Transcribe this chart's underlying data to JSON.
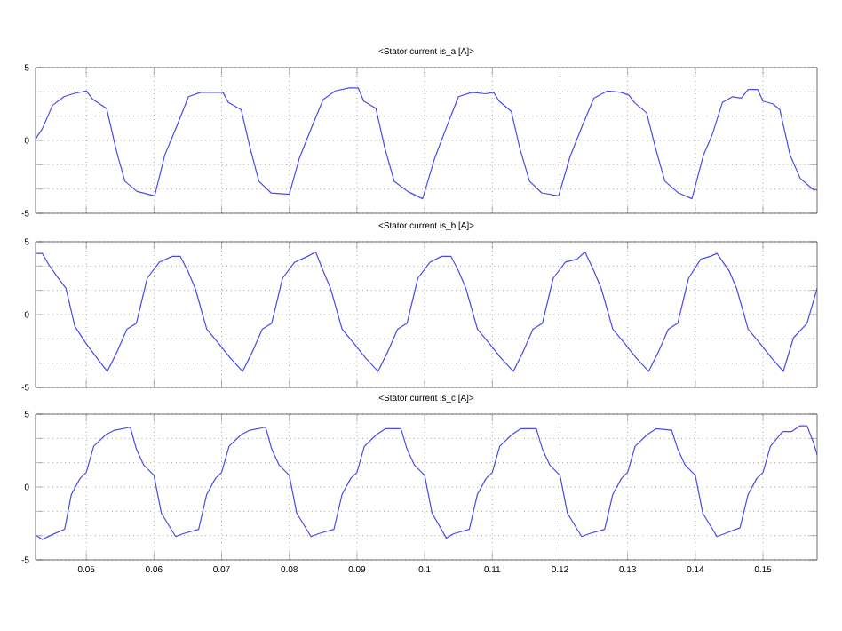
{
  "chart_data": [
    {
      "type": "line",
      "title": "<Stator current is_a [A]>",
      "color": "#4a4ae6",
      "grid": true,
      "tick_labels": "y",
      "xlim": [
        0.0425,
        0.158
      ],
      "ylim": [
        -5,
        5
      ],
      "xticks": [
        0.05,
        0.06,
        0.07,
        0.08,
        0.09,
        0.1,
        0.11,
        0.12,
        0.13,
        0.14,
        0.15
      ],
      "yticks": [
        -5,
        {
          "value": -3.333,
          "label": null
        },
        {
          "value": -1.667,
          "label": null
        },
        0,
        {
          "value": 1.667,
          "label": null
        },
        {
          "value": 3.333,
          "label": null
        },
        5
      ],
      "x": [
        0.0425,
        0.0435,
        0.045,
        0.0467,
        0.048,
        0.05,
        0.051,
        0.053,
        0.0545,
        0.0557,
        0.0575,
        0.0601,
        0.0616,
        0.0634,
        0.0651,
        0.0669,
        0.0702,
        0.071,
        0.0729,
        0.0742,
        0.0755,
        0.0773,
        0.08,
        0.0815,
        0.0833,
        0.085,
        0.0868,
        0.0888,
        0.0902,
        0.091,
        0.0928,
        0.0941,
        0.0955,
        0.0975,
        0.0997,
        0.1015,
        0.1033,
        0.105,
        0.107,
        0.109,
        0.1102,
        0.111,
        0.1128,
        0.1141,
        0.1155,
        0.1173,
        0.1198,
        0.1215,
        0.1233,
        0.125,
        0.127,
        0.129,
        0.1302,
        0.131,
        0.1328,
        0.1341,
        0.1355,
        0.1375,
        0.1395,
        0.1412,
        0.1425,
        0.144,
        0.1455,
        0.1468,
        0.1478,
        0.1492,
        0.15,
        0.1515,
        0.1525,
        0.154,
        0.1555,
        0.1575,
        0.158
      ],
      "values": [
        0.1,
        0.8,
        2.4,
        3.0,
        3.2,
        3.4,
        2.8,
        2.2,
        -0.8,
        -2.8,
        -3.5,
        -3.8,
        -1.0,
        1.0,
        3.0,
        3.3,
        3.3,
        2.6,
        2.1,
        -0.5,
        -2.8,
        -3.6,
        -3.7,
        -1.2,
        0.9,
        2.8,
        3.4,
        3.6,
        3.6,
        2.7,
        2.2,
        -0.5,
        -2.8,
        -3.5,
        -4.0,
        -1.2,
        1.0,
        3.0,
        3.3,
        3.2,
        3.3,
        2.7,
        2.0,
        -0.6,
        -2.8,
        -3.6,
        -3.8,
        -1.1,
        1.0,
        2.9,
        3.4,
        3.3,
        3.1,
        2.6,
        1.9,
        -0.5,
        -2.8,
        -3.6,
        -4.0,
        -1.0,
        0.4,
        2.6,
        3.0,
        2.9,
        3.5,
        3.5,
        2.7,
        2.5,
        2.1,
        -1.0,
        -2.6,
        -3.4,
        -3.4
      ]
    },
    {
      "type": "line",
      "title": "<Stator current is_b [A]>",
      "color": "#4a4ae6",
      "grid": true,
      "tick_labels": "y",
      "xlim": [
        0.0425,
        0.158
      ],
      "ylim": [
        -5,
        5
      ],
      "xticks": [
        0.05,
        0.06,
        0.07,
        0.08,
        0.09,
        0.1,
        0.11,
        0.12,
        0.13,
        0.14,
        0.15
      ],
      "yticks": [
        -5,
        {
          "value": -3.333,
          "label": null
        },
        {
          "value": -1.667,
          "label": null
        },
        0,
        {
          "value": 1.667,
          "label": null
        },
        {
          "value": 3.333,
          "label": null
        },
        5
      ],
      "x": [
        0.0425,
        0.0435,
        0.0445,
        0.0457,
        0.047,
        0.0483,
        0.05,
        0.0516,
        0.0531,
        0.0545,
        0.056,
        0.0574,
        0.059,
        0.0608,
        0.0627,
        0.0639,
        0.065,
        0.0661,
        0.0678,
        0.0696,
        0.0713,
        0.0731,
        0.0745,
        0.076,
        0.0774,
        0.079,
        0.0808,
        0.0827,
        0.0839,
        0.085,
        0.0861,
        0.0878,
        0.0896,
        0.0913,
        0.0931,
        0.0945,
        0.096,
        0.0974,
        0.099,
        0.1008,
        0.1025,
        0.1039,
        0.105,
        0.1061,
        0.1078,
        0.1096,
        0.1113,
        0.1131,
        0.1145,
        0.116,
        0.1174,
        0.119,
        0.1208,
        0.1225,
        0.1237,
        0.125,
        0.1261,
        0.1278,
        0.1296,
        0.1313,
        0.1331,
        0.1345,
        0.136,
        0.1374,
        0.139,
        0.1408,
        0.1422,
        0.1432,
        0.145,
        0.1461,
        0.1478,
        0.1496,
        0.1513,
        0.153,
        0.1545,
        0.1565,
        0.158
      ],
      "values": [
        4.2,
        4.2,
        3.4,
        2.6,
        1.8,
        -0.8,
        -2.0,
        -3.0,
        -3.9,
        -2.6,
        -1.0,
        -0.6,
        2.5,
        3.6,
        4.0,
        4.0,
        3.0,
        1.8,
        -1.0,
        -2.0,
        -3.0,
        -3.9,
        -2.6,
        -1.0,
        -0.6,
        2.5,
        3.6,
        4.0,
        4.3,
        3.0,
        1.8,
        -1.0,
        -2.0,
        -3.0,
        -3.9,
        -2.6,
        -1.0,
        -0.6,
        2.5,
        3.6,
        4.0,
        4.0,
        3.0,
        1.8,
        -1.0,
        -2.0,
        -3.0,
        -3.9,
        -2.6,
        -1.0,
        -0.6,
        2.5,
        3.6,
        3.8,
        4.3,
        3.0,
        1.8,
        -1.0,
        -2.0,
        -3.0,
        -3.9,
        -2.6,
        -1.0,
        -0.6,
        2.5,
        3.8,
        4.0,
        4.2,
        3.0,
        1.8,
        -1.0,
        -2.0,
        -3.0,
        -3.9,
        -1.6,
        -0.6,
        1.8
      ]
    },
    {
      "type": "line",
      "title": "<Stator current is_c [A]>",
      "color": "#4a4ae6",
      "grid": true,
      "xlim": [
        0.0425,
        0.158
      ],
      "ylim": [
        -5,
        5
      ],
      "xticks": [
        0.05,
        0.06,
        0.07,
        0.08,
        0.09,
        0.1,
        0.11,
        0.12,
        0.13,
        0.14,
        0.15
      ],
      "yticks": [
        -5,
        {
          "value": -3.333,
          "label": null
        },
        {
          "value": -1.667,
          "label": null
        },
        0,
        {
          "value": 1.667,
          "label": null
        },
        {
          "value": 3.333,
          "label": null
        },
        5
      ],
      "x": [
        0.0425,
        0.0435,
        0.0448,
        0.0468,
        0.0478,
        0.0491,
        0.05,
        0.0511,
        0.0529,
        0.0542,
        0.0565,
        0.0574,
        0.0585,
        0.06,
        0.0611,
        0.0632,
        0.0643,
        0.0666,
        0.0678,
        0.0691,
        0.07,
        0.0711,
        0.0729,
        0.0742,
        0.0765,
        0.0774,
        0.0785,
        0.08,
        0.0811,
        0.0832,
        0.0843,
        0.0866,
        0.0878,
        0.0891,
        0.09,
        0.0911,
        0.0929,
        0.0942,
        0.0965,
        0.0974,
        0.0985,
        0.1,
        0.1011,
        0.1032,
        0.1043,
        0.1066,
        0.1078,
        0.1091,
        0.11,
        0.1111,
        0.1129,
        0.1142,
        0.1165,
        0.1174,
        0.1185,
        0.12,
        0.1211,
        0.1232,
        0.1243,
        0.1266,
        0.1278,
        0.1291,
        0.13,
        0.1311,
        0.1329,
        0.1342,
        0.1365,
        0.1374,
        0.1385,
        0.14,
        0.1411,
        0.1432,
        0.1443,
        0.1466,
        0.1478,
        0.1491,
        0.15,
        0.1511,
        0.1529,
        0.1542,
        0.1555,
        0.1565,
        0.1575,
        0.158
      ],
      "values": [
        -3.3,
        -3.6,
        -3.3,
        -2.9,
        -0.5,
        0.6,
        1.0,
        2.8,
        3.6,
        3.9,
        4.1,
        2.6,
        1.5,
        0.8,
        -1.8,
        -3.4,
        -3.2,
        -2.9,
        -0.5,
        0.6,
        1.0,
        2.8,
        3.6,
        3.9,
        4.1,
        2.6,
        1.5,
        0.8,
        -1.8,
        -3.4,
        -3.2,
        -2.9,
        -0.5,
        0.6,
        1.0,
        2.8,
        3.6,
        4.0,
        4.0,
        2.6,
        1.5,
        0.8,
        -1.8,
        -3.5,
        -3.2,
        -2.9,
        -0.5,
        0.6,
        1.0,
        2.8,
        3.6,
        4.0,
        4.0,
        2.6,
        1.5,
        0.8,
        -1.8,
        -3.4,
        -3.2,
        -2.9,
        -0.5,
        0.6,
        1.0,
        2.8,
        3.6,
        4.0,
        3.9,
        2.6,
        1.5,
        0.8,
        -1.8,
        -3.4,
        -3.2,
        -2.8,
        -0.5,
        0.6,
        1.0,
        2.8,
        3.8,
        3.8,
        4.2,
        4.2,
        3.0,
        2.2
      ]
    }
  ]
}
